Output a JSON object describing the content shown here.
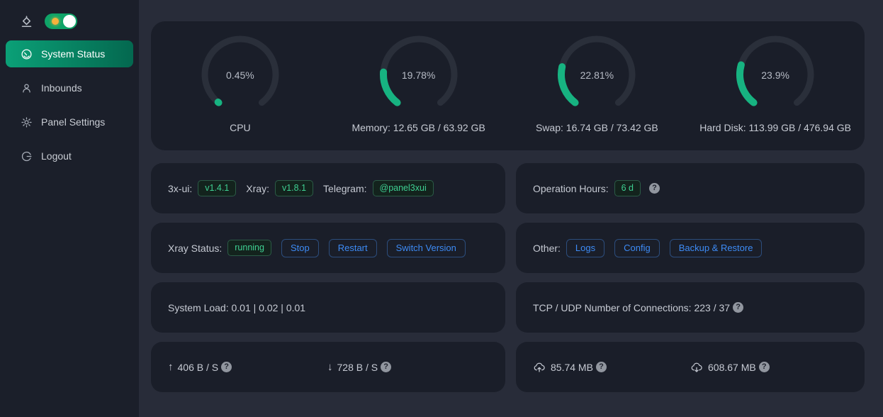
{
  "colors": {
    "accent_green": "#17b381",
    "menu_gradient_start": "#0ba077",
    "menu_gradient_end": "#04684f",
    "accent_blue": "#3d8bf5",
    "tag_green_text": "#3ecf92",
    "toggle_green": "#0fa468",
    "toggle_dot_orange": "#f6b23c",
    "card_bg": "#1a1e29",
    "main_bg": "#282c39",
    "sidebar_bg": "#1b1f2a"
  },
  "icons": {
    "help": "?",
    "up_arrow": "↑",
    "down_arrow": "↓"
  },
  "sidebar": {
    "toggle_state": "on",
    "items": [
      {
        "label": "System Status",
        "icon": "dashboard-icon",
        "active": true
      },
      {
        "label": "Inbounds",
        "icon": "user-icon",
        "active": false
      },
      {
        "label": "Panel Settings",
        "icon": "gear-icon",
        "active": false
      },
      {
        "label": "Logout",
        "icon": "logout-icon",
        "active": false
      }
    ]
  },
  "gauges": [
    {
      "percent": 0.45,
      "percent_label": "0.45%",
      "label": "CPU"
    },
    {
      "percent": 19.78,
      "percent_label": "19.78%",
      "label": "Memory: 12.65 GB / 63.92 GB"
    },
    {
      "percent": 22.81,
      "percent_label": "22.81%",
      "label": "Swap: 16.74 GB / 73.42 GB"
    },
    {
      "percent": 23.9,
      "percent_label": "23.9%",
      "label": "Hard Disk: 113.99 GB / 476.94 GB"
    }
  ],
  "info": {
    "xui_label": "3x-ui:",
    "xui_version": "v1.4.1",
    "xray_label": "Xray:",
    "xray_version": "v1.8.1",
    "telegram_label": "Telegram:",
    "telegram_handle": "@panel3xui",
    "operation_hours_label": "Operation Hours:",
    "operation_hours_value": "6 d"
  },
  "xray": {
    "status_label": "Xray Status:",
    "status": "running",
    "buttons": [
      "Stop",
      "Restart",
      "Switch Version"
    ]
  },
  "other": {
    "label": "Other:",
    "buttons": [
      "Logs",
      "Config",
      "Backup & Restore"
    ]
  },
  "system_load": {
    "text": "System Load: 0.01 | 0.02 | 0.01"
  },
  "connections": {
    "text": "TCP / UDP Number of Connections: 223 / 37"
  },
  "network": {
    "upload_speed": "406 B / S",
    "download_speed": "728 B / S",
    "total_sent": "85.74 MB",
    "total_received": "608.67 MB"
  }
}
